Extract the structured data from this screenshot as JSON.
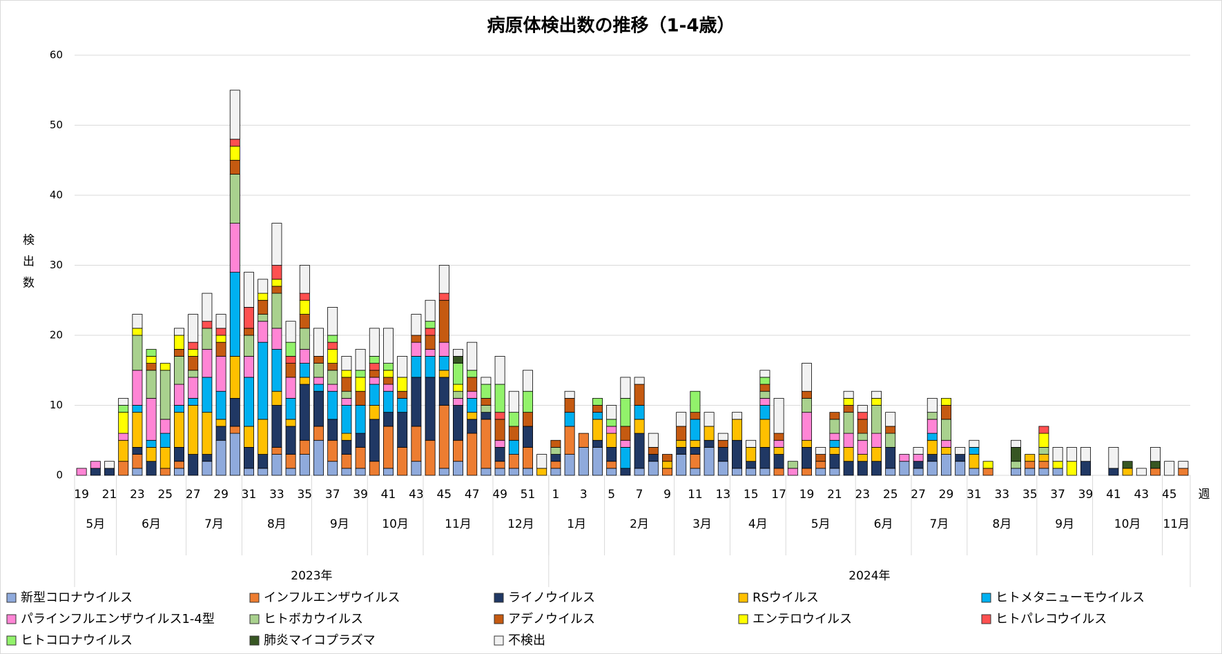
{
  "chart_data": {
    "type": "stacked_bar",
    "title": "病原体検出数の推移（1-4歳）",
    "y_label": "検出数",
    "x_label": "週",
    "ylim": [
      0,
      60
    ],
    "yticks": [
      0,
      10,
      20,
      30,
      40,
      50,
      60
    ],
    "grid": true,
    "legend": "bottom",
    "categories": [
      "19",
      null,
      "21",
      null,
      "23",
      null,
      "25",
      null,
      "27",
      null,
      "29",
      null,
      "31",
      null,
      "33",
      null,
      "35",
      null,
      "37",
      null,
      "39",
      null,
      "41",
      null,
      "43",
      null,
      "45",
      null,
      "47",
      null,
      "49",
      null,
      "51",
      null,
      "1",
      null,
      "3",
      null,
      "5",
      null,
      "7",
      null,
      "9",
      null,
      "11",
      null,
      "13",
      null,
      "15",
      null,
      "17",
      null,
      "19",
      null,
      "21",
      null,
      "23",
      null,
      "25",
      null,
      "27",
      null,
      "29",
      null,
      "31",
      null,
      "33",
      null,
      "35",
      null,
      "37",
      null,
      "39",
      null,
      "41",
      null,
      "43",
      null,
      "45",
      null
    ],
    "months": [
      {
        "label": "5月",
        "weeks": 3
      },
      {
        "label": "6月",
        "weeks": 5
      },
      {
        "label": "7月",
        "weeks": 4
      },
      {
        "label": "8月",
        "weeks": 5
      },
      {
        "label": "9月",
        "weeks": 4
      },
      {
        "label": "10月",
        "weeks": 4
      },
      {
        "label": "11月",
        "weeks": 5
      },
      {
        "label": "12月",
        "weeks": 4
      },
      {
        "label": "1月",
        "weeks": 4
      },
      {
        "label": "2月",
        "weeks": 5
      },
      {
        "label": "3月",
        "weeks": 4
      },
      {
        "label": "4月",
        "weeks": 4
      },
      {
        "label": "5月",
        "weeks": 5
      },
      {
        "label": "6月",
        "weeks": 4
      },
      {
        "label": "7月",
        "weeks": 4
      },
      {
        "label": "8月",
        "weeks": 5
      },
      {
        "label": "9月",
        "weeks": 4
      },
      {
        "label": "10月",
        "weeks": 5
      },
      {
        "label": "11月",
        "weeks": 2
      }
    ],
    "years": [
      {
        "label": "2023年",
        "weeks": 34
      },
      {
        "label": "2024年",
        "weeks": 46
      }
    ],
    "series": [
      {
        "name": "新型コロナウイルス",
        "color": "#8faadc",
        "values": [
          0,
          0,
          0,
          0,
          1,
          0,
          0,
          1,
          0,
          2,
          5,
          6,
          1,
          1,
          3,
          1,
          3,
          5,
          2,
          1,
          1,
          0,
          1,
          0,
          2,
          0,
          1,
          2,
          0,
          1,
          1,
          1,
          1,
          0,
          1,
          3,
          4,
          4,
          1,
          0,
          1,
          2,
          0,
          3,
          1,
          4,
          2,
          1,
          1,
          1,
          0,
          0,
          0,
          1,
          1,
          0,
          0,
          0,
          1,
          2,
          1,
          2,
          3,
          2,
          1,
          0,
          0,
          1,
          1,
          1,
          1,
          0,
          0,
          0,
          0,
          0,
          0,
          0,
          0,
          0
        ]
      },
      {
        "name": "インフルエンザウイルス",
        "color": "#ed7d31",
        "values": [
          0,
          0,
          0,
          2,
          2,
          0,
          1,
          1,
          0,
          0,
          0,
          1,
          0,
          0,
          1,
          2,
          2,
          2,
          3,
          2,
          3,
          2,
          6,
          4,
          5,
          5,
          9,
          3,
          6,
          7,
          1,
          2,
          3,
          0,
          1,
          4,
          2,
          0,
          1,
          0,
          0,
          0,
          1,
          0,
          2,
          0,
          0,
          0,
          0,
          0,
          1,
          0,
          1,
          1,
          0,
          0,
          0,
          0,
          0,
          0,
          0,
          0,
          0,
          0,
          0,
          1,
          0,
          0,
          1,
          1,
          0,
          0,
          0,
          0,
          0,
          0,
          0,
          1,
          0,
          1
        ]
      },
      {
        "name": "ライノウイルス",
        "color": "#203864",
        "values": [
          0,
          1,
          1,
          0,
          1,
          2,
          0,
          2,
          3,
          1,
          2,
          4,
          3,
          2,
          6,
          4,
          8,
          5,
          3,
          2,
          2,
          6,
          2,
          5,
          7,
          9,
          4,
          5,
          2,
          1,
          2,
          0,
          3,
          0,
          1,
          0,
          0,
          1,
          2,
          1,
          5,
          1,
          0,
          1,
          1,
          1,
          2,
          4,
          1,
          3,
          2,
          0,
          3,
          0,
          2,
          2,
          2,
          2,
          3,
          0,
          1,
          1,
          0,
          1,
          0,
          0,
          0,
          0,
          0,
          0,
          0,
          0,
          2,
          0,
          1,
          0,
          0,
          0,
          0,
          0
        ]
      },
      {
        "name": "RSウイルス",
        "color": "#ffc000",
        "values": [
          0,
          0,
          0,
          3,
          5,
          2,
          3,
          5,
          7,
          6,
          1,
          6,
          3,
          5,
          2,
          1,
          1,
          0,
          0,
          1,
          0,
          2,
          0,
          0,
          0,
          0,
          1,
          0,
          1,
          0,
          0,
          0,
          0,
          1,
          0,
          0,
          0,
          3,
          2,
          0,
          2,
          0,
          1,
          1,
          1,
          2,
          0,
          3,
          2,
          4,
          1,
          0,
          1,
          0,
          1,
          2,
          1,
          2,
          0,
          0,
          0,
          2,
          1,
          0,
          2,
          0,
          0,
          0,
          1,
          1,
          0,
          0,
          0,
          0,
          0,
          1,
          0,
          0,
          0,
          0
        ]
      },
      {
        "name": "ヒトメタニューモウイルス",
        "color": "#00b0f0",
        "values": [
          0,
          0,
          0,
          0,
          1,
          1,
          2,
          1,
          1,
          5,
          4,
          12,
          7,
          11,
          6,
          3,
          2,
          1,
          4,
          4,
          4,
          3,
          3,
          2,
          3,
          3,
          2,
          0,
          2,
          0,
          0,
          2,
          0,
          0,
          0,
          2,
          0,
          1,
          0,
          3,
          2,
          0,
          0,
          0,
          3,
          0,
          0,
          0,
          0,
          2,
          0,
          0,
          0,
          0,
          1,
          0,
          0,
          0,
          0,
          0,
          0,
          1,
          0,
          0,
          1,
          0,
          0,
          0,
          0,
          0,
          0,
          0,
          0,
          0,
          0,
          0,
          0,
          0,
          0,
          0
        ]
      },
      {
        "name": "パラインフルエンザウイルス1-4型",
        "color": "#ff85d5",
        "values": [
          1,
          1,
          0,
          1,
          5,
          6,
          2,
          3,
          3,
          4,
          5,
          7,
          3,
          3,
          3,
          3,
          2,
          1,
          1,
          1,
          0,
          1,
          1,
          0,
          2,
          1,
          2,
          1,
          1,
          0,
          1,
          0,
          0,
          0,
          0,
          0,
          0,
          0,
          1,
          1,
          0,
          0,
          0,
          0,
          0,
          0,
          0,
          0,
          0,
          1,
          1,
          1,
          4,
          0,
          1,
          2,
          2,
          2,
          0,
          1,
          1,
          2,
          1,
          0,
          0,
          0,
          0,
          0,
          0,
          0,
          0,
          0,
          0,
          0,
          0,
          0,
          0,
          0,
          0,
          0
        ]
      },
      {
        "name": "ヒトボカウイルス",
        "color": "#a9d18e",
        "values": [
          0,
          0,
          0,
          0,
          5,
          4,
          7,
          4,
          1,
          3,
          0,
          7,
          3,
          1,
          5,
          0,
          3,
          2,
          2,
          1,
          0,
          0,
          0,
          0,
          0,
          0,
          0,
          1,
          0,
          1,
          0,
          0,
          0,
          0,
          1,
          0,
          0,
          0,
          0,
          0,
          0,
          0,
          0,
          0,
          0,
          0,
          0,
          0,
          0,
          1,
          0,
          1,
          2,
          0,
          2,
          3,
          1,
          4,
          2,
          0,
          0,
          1,
          3,
          0,
          0,
          0,
          0,
          1,
          0,
          1,
          0,
          0,
          0,
          0,
          0,
          0,
          0,
          0,
          0,
          0
        ]
      },
      {
        "name": "アデノウイルス",
        "color": "#c55a11",
        "values": [
          0,
          0,
          0,
          0,
          0,
          1,
          0,
          1,
          2,
          0,
          2,
          2,
          1,
          2,
          1,
          2,
          2,
          1,
          1,
          2,
          2,
          1,
          1,
          1,
          1,
          2,
          6,
          0,
          2,
          1,
          3,
          2,
          2,
          0,
          1,
          2,
          0,
          1,
          0,
          2,
          3,
          1,
          1,
          2,
          1,
          0,
          1,
          0,
          0,
          1,
          1,
          0,
          1,
          1,
          1,
          1,
          2,
          0,
          1,
          0,
          0,
          0,
          2,
          0,
          0,
          0,
          0,
          0,
          0,
          0,
          0,
          0,
          0,
          0,
          0,
          0,
          0,
          0,
          0,
          0
        ]
      },
      {
        "name": "エンテロウイルス",
        "color": "#ffff00",
        "values": [
          0,
          0,
          0,
          3,
          1,
          1,
          1,
          2,
          1,
          0,
          1,
          2,
          0,
          1,
          1,
          0,
          2,
          0,
          2,
          1,
          2,
          0,
          1,
          2,
          0,
          0,
          0,
          1,
          0,
          0,
          0,
          0,
          0,
          0,
          0,
          0,
          0,
          0,
          0,
          0,
          0,
          0,
          0,
          0,
          0,
          0,
          0,
          0,
          0,
          0,
          0,
          0,
          0,
          0,
          0,
          1,
          0,
          1,
          0,
          0,
          0,
          0,
          1,
          0,
          0,
          1,
          0,
          0,
          0,
          2,
          1,
          2,
          0,
          0,
          0,
          0,
          0,
          0,
          0,
          0
        ]
      },
      {
        "name": "ヒトパレコウイルス",
        "color": "#ff5050",
        "values": [
          0,
          0,
          0,
          0,
          0,
          0,
          0,
          0,
          1,
          1,
          1,
          1,
          3,
          0,
          2,
          1,
          1,
          0,
          1,
          0,
          0,
          1,
          0,
          0,
          0,
          1,
          1,
          0,
          0,
          0,
          1,
          0,
          0,
          0,
          0,
          0,
          0,
          0,
          0,
          0,
          0,
          0,
          0,
          0,
          0,
          0,
          0,
          0,
          0,
          0,
          0,
          0,
          0,
          0,
          0,
          0,
          1,
          0,
          0,
          0,
          0,
          0,
          0,
          0,
          0,
          0,
          0,
          0,
          0,
          1,
          0,
          0,
          0,
          0,
          0,
          0,
          0,
          0,
          0,
          0
        ]
      },
      {
        "name": "ヒトコロナウイルス",
        "color": "#92f26b",
        "values": [
          0,
          0,
          0,
          1,
          0,
          1,
          0,
          0,
          0,
          0,
          0,
          0,
          0,
          0,
          0,
          2,
          0,
          0,
          1,
          0,
          1,
          1,
          1,
          0,
          0,
          1,
          0,
          3,
          1,
          2,
          4,
          2,
          3,
          0,
          0,
          0,
          0,
          1,
          1,
          4,
          0,
          0,
          0,
          0,
          3,
          0,
          0,
          0,
          0,
          1,
          0,
          0,
          0,
          0,
          0,
          0,
          0,
          0,
          0,
          0,
          0,
          0,
          0,
          0,
          0,
          0,
          0,
          0,
          0,
          0,
          0,
          0,
          0,
          0,
          0,
          0,
          0,
          0,
          0,
          0
        ]
      },
      {
        "name": "肺炎マイコプラズマ",
        "color": "#375623",
        "values": [
          0,
          0,
          0,
          0,
          0,
          0,
          0,
          0,
          0,
          0,
          0,
          0,
          0,
          0,
          0,
          0,
          0,
          0,
          0,
          0,
          0,
          0,
          0,
          0,
          0,
          0,
          0,
          1,
          0,
          0,
          0,
          0,
          0,
          0,
          0,
          0,
          0,
          0,
          0,
          0,
          0,
          0,
          0,
          0,
          0,
          0,
          0,
          0,
          0,
          0,
          0,
          0,
          0,
          0,
          0,
          0,
          0,
          0,
          0,
          0,
          0,
          0,
          0,
          0,
          0,
          0,
          0,
          2,
          0,
          0,
          0,
          0,
          0,
          0,
          0,
          1,
          0,
          1,
          0,
          0
        ]
      },
      {
        "name": "不検出",
        "color": "#f2f2f2",
        "values": [
          0,
          0,
          1,
          1,
          2,
          0,
          0,
          1,
          4,
          4,
          2,
          7,
          5,
          2,
          6,
          3,
          4,
          4,
          4,
          2,
          3,
          4,
          5,
          3,
          3,
          3,
          4,
          1,
          4,
          1,
          4,
          3,
          3,
          2,
          0,
          1,
          0,
          0,
          2,
          3,
          1,
          2,
          0,
          2,
          0,
          2,
          1,
          1,
          1,
          1,
          5,
          0,
          4,
          1,
          0,
          1,
          1,
          1,
          2,
          0,
          1,
          2,
          0,
          1,
          1,
          0,
          0,
          1,
          0,
          0,
          2,
          2,
          2,
          0,
          3,
          0,
          1,
          2,
          2,
          1
        ]
      }
    ]
  }
}
